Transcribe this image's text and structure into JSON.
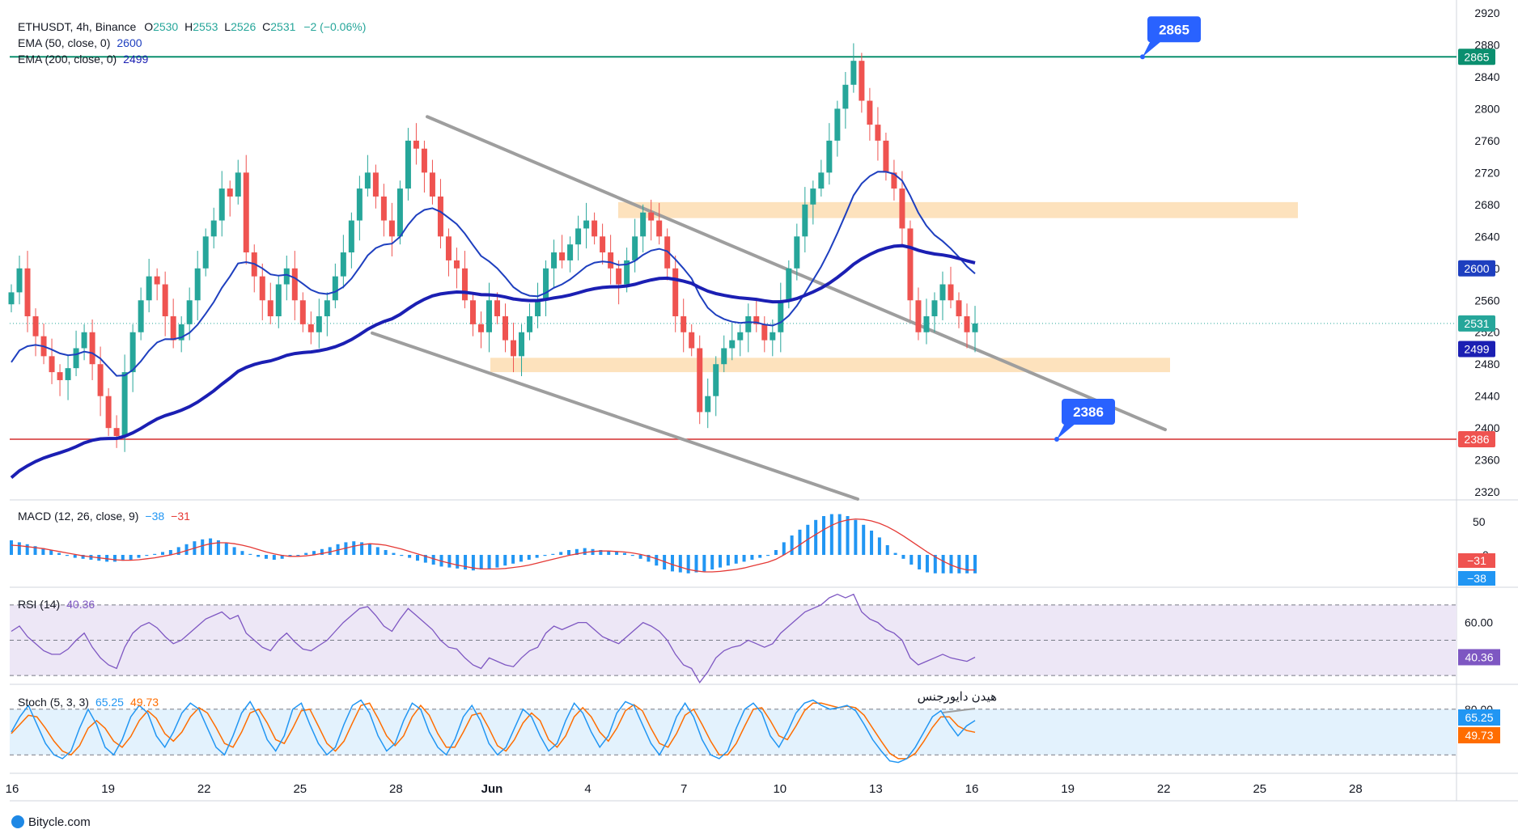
{
  "header": {
    "symbol_line": "ETHUSDT, 4h, Binance",
    "ohlc": {
      "o_label": "O",
      "o": "2530",
      "h_label": "H",
      "h": "2553",
      "l_label": "L",
      "l": "2526",
      "c_label": "C",
      "c": "2531",
      "change": "−2 (−0.06%)"
    },
    "ema50_label": "EMA (50, close, 0)",
    "ema50_value": "2600",
    "ema200_label": "EMA (200, close, 0)",
    "ema200_value": "2499"
  },
  "footer": {
    "watermark": "Bitycle.com"
  },
  "colors": {
    "up": "#26a69a",
    "down": "#ef5350",
    "ema50": "#1e3fbf",
    "ema200": "#1b1fb3",
    "trendline": "#9e9e9e",
    "zone": "#fde2bd",
    "resistance_line": "#0b8f6f",
    "support_line": "#d32f2f",
    "callout": "#2962ff",
    "rsi": "#7e57c2",
    "stoch_k": "#2196f3",
    "stoch_d": "#ff6d00",
    "macd_hist": "#2196f3",
    "macd_signal": "#e53935"
  },
  "chart_data": [
    {
      "type": "candlestick",
      "title": "ETHUSDT, 4h, Binance",
      "x_ticks": [
        "16",
        "19",
        "22",
        "25",
        "28",
        "Jun",
        "4",
        "7",
        "10",
        "13",
        "16",
        "19",
        "22",
        "25",
        "28"
      ],
      "y_ticks": [
        2320,
        2360,
        2400,
        2440,
        2480,
        2520,
        2560,
        2600,
        2640,
        2680,
        2720,
        2760,
        2800,
        2840,
        2880,
        2920
      ],
      "ylim": [
        2310,
        2922
      ],
      "price_labels": {
        "resistance": "2865",
        "ema50": "2600",
        "last": "2531",
        "ema200": "2499",
        "support": "2386"
      },
      "horizontal_levels": [
        {
          "value": 2865,
          "callout": "2865"
        },
        {
          "value": 2386,
          "callout": "2386"
        }
      ],
      "zones": [
        {
          "from": 2663,
          "to": 2683
        },
        {
          "from": 2470,
          "to": 2488
        }
      ],
      "trend_lines": [
        {
          "from": [
            "28",
            2790
          ],
          "to": [
            "22",
            2398
          ]
        },
        {
          "from": [
            "27",
            2519
          ],
          "to": [
            "10",
            2311
          ]
        }
      ],
      "closes": [
        2570,
        2600,
        2540,
        2515,
        2490,
        2470,
        2460,
        2475,
        2500,
        2520,
        2480,
        2440,
        2400,
        2390,
        2470,
        2520,
        2560,
        2590,
        2580,
        2540,
        2510,
        2530,
        2560,
        2600,
        2640,
        2660,
        2700,
        2690,
        2720,
        2620,
        2590,
        2560,
        2540,
        2580,
        2600,
        2560,
        2530,
        2520,
        2540,
        2560,
        2590,
        2620,
        2660,
        2700,
        2720,
        2690,
        2660,
        2640,
        2700,
        2760,
        2750,
        2720,
        2690,
        2640,
        2610,
        2600,
        2560,
        2530,
        2520,
        2560,
        2540,
        2510,
        2490,
        2520,
        2540,
        2560,
        2600,
        2620,
        2610,
        2630,
        2650,
        2660,
        2640,
        2620,
        2600,
        2580,
        2610,
        2640,
        2670,
        2660,
        2640,
        2600,
        2540,
        2520,
        2500,
        2420,
        2440,
        2480,
        2500,
        2510,
        2520,
        2540,
        2530,
        2510,
        2520,
        2560,
        2600,
        2640,
        2680,
        2700,
        2720,
        2760,
        2800,
        2830,
        2860,
        2810,
        2780,
        2760,
        2720,
        2700,
        2650,
        2560,
        2520,
        2540,
        2560,
        2580,
        2560,
        2540,
        2520,
        2531
      ]
    },
    {
      "type": "line",
      "name": "MACD (12, 26, close, 9)",
      "indicator_label": "MACD (12, 26, close, 9)",
      "values_label": {
        "macd": "−38",
        "signal": "−31"
      },
      "y_ticks": [
        "50",
        "0"
      ],
      "histogram": [
        30,
        26,
        22,
        18,
        14,
        10,
        4,
        -2,
        -6,
        -8,
        -10,
        -12,
        -14,
        -14,
        -12,
        -10,
        -6,
        -2,
        2,
        6,
        10,
        16,
        22,
        28,
        32,
        34,
        30,
        24,
        16,
        8,
        2,
        -4,
        -8,
        -10,
        -8,
        -4,
        0,
        4,
        8,
        12,
        16,
        22,
        26,
        28,
        26,
        22,
        16,
        10,
        4,
        -2,
        -6,
        -12,
        -16,
        -20,
        -24,
        -26,
        -28,
        -30,
        -32,
        -30,
        -28,
        -26,
        -22,
        -18,
        -14,
        -10,
        -6,
        -2,
        2,
        6,
        10,
        12,
        14,
        12,
        10,
        8,
        6,
        4,
        -2,
        -8,
        -14,
        -22,
        -30,
        -34,
        -36,
        -38,
        -36,
        -34,
        -30,
        -26,
        -22,
        -18,
        -14,
        -10,
        -6,
        -2,
        10,
        26,
        40,
        52,
        62,
        72,
        80,
        84,
        84,
        80,
        72,
        62,
        50,
        36,
        20,
        4,
        -8,
        -20,
        -30,
        -36,
        -38,
        -38,
        -38,
        -38,
        -38,
        -38
      ],
      "signal": [
        20,
        19,
        17,
        15,
        13,
        10,
        7,
        4,
        1,
        -2,
        -4,
        -6,
        -8,
        -10,
        -11,
        -11,
        -10,
        -8,
        -6,
        -3,
        0,
        4,
        9,
        14,
        19,
        23,
        25,
        25,
        23,
        20,
        16,
        11,
        6,
        2,
        -1,
        -3,
        -3,
        -2,
        0,
        3,
        6,
        10,
        14,
        18,
        21,
        23,
        22,
        20,
        16,
        12,
        7,
        2,
        -3,
        -8,
        -13,
        -17,
        -21,
        -24,
        -27,
        -29,
        -29,
        -29,
        -28,
        -26,
        -24,
        -21,
        -17,
        -13,
        -9,
        -5,
        -1,
        2,
        5,
        7,
        8,
        8,
        7,
        6,
        4,
        1,
        -3,
        -8,
        -14,
        -20,
        -25,
        -30,
        -33,
        -35,
        -35,
        -34,
        -32,
        -30,
        -27,
        -23,
        -19,
        -15,
        -9,
        0,
        10,
        21,
        32,
        42,
        52,
        61,
        68,
        72,
        74,
        73,
        70,
        65,
        58,
        49,
        39,
        28,
        17,
        6,
        -4,
        -13,
        -21,
        -27,
        -31,
        -31
      ]
    },
    {
      "type": "line",
      "name": "RSI (14)",
      "indicator_label": "RSI (14)",
      "value_label": "40.36",
      "y_ticks": [
        "60.00",
        "40.36"
      ],
      "bands": [
        70,
        50,
        30
      ],
      "ylim": [
        25,
        80
      ],
      "values": [
        55,
        58,
        52,
        48,
        44,
        42,
        42,
        45,
        50,
        54,
        46,
        40,
        36,
        34,
        46,
        54,
        58,
        60,
        57,
        52,
        48,
        50,
        54,
        58,
        62,
        64,
        66,
        62,
        64,
        54,
        50,
        46,
        44,
        50,
        54,
        49,
        45,
        44,
        47,
        50,
        55,
        60,
        64,
        68,
        69,
        64,
        58,
        55,
        62,
        68,
        64,
        60,
        56,
        50,
        46,
        45,
        40,
        36,
        34,
        40,
        38,
        36,
        35,
        40,
        44,
        46,
        54,
        58,
        56,
        58,
        60,
        60,
        56,
        52,
        50,
        48,
        52,
        56,
        60,
        58,
        55,
        50,
        42,
        36,
        34,
        26,
        32,
        40,
        44,
        46,
        47,
        50,
        48,
        46,
        48,
        54,
        58,
        62,
        66,
        68,
        70,
        74,
        76,
        74,
        76,
        66,
        62,
        60,
        56,
        54,
        50,
        40,
        36,
        38,
        40,
        42,
        40,
        39,
        38,
        40.36
      ]
    },
    {
      "type": "line",
      "name": "Stoch (5, 3, 3)",
      "indicator_label": "Stoch (5, 3, 3)",
      "values_label": {
        "k": "65.25",
        "d": "49.73"
      },
      "y_ticks": [
        "80.00",
        "65.25",
        "49.73"
      ],
      "bands": [
        80,
        20
      ],
      "ylim": [
        0,
        100
      ],
      "annotation": "هیدن دایورجنس",
      "k": [
        50,
        70,
        85,
        60,
        35,
        20,
        15,
        25,
        55,
        80,
        60,
        30,
        20,
        40,
        70,
        85,
        75,
        45,
        30,
        50,
        75,
        88,
        80,
        55,
        30,
        20,
        45,
        75,
        90,
        70,
        40,
        25,
        45,
        80,
        88,
        60,
        35,
        20,
        30,
        60,
        85,
        92,
        75,
        45,
        25,
        35,
        65,
        88,
        80,
        50,
        30,
        20,
        40,
        70,
        85,
        65,
        35,
        20,
        30,
        55,
        80,
        70,
        45,
        25,
        35,
        65,
        88,
        75,
        50,
        30,
        45,
        75,
        90,
        85,
        60,
        35,
        20,
        40,
        70,
        88,
        70,
        40,
        20,
        15,
        25,
        55,
        80,
        88,
        75,
        45,
        30,
        50,
        75,
        88,
        92,
        85,
        80,
        82,
        85,
        78,
        60,
        40,
        25,
        12,
        10,
        15,
        30,
        50,
        70,
        78,
        60,
        45,
        58,
        65.25
      ],
      "d": [
        48,
        60,
        72,
        70,
        55,
        38,
        25,
        20,
        32,
        55,
        65,
        55,
        38,
        30,
        44,
        65,
        78,
        68,
        48,
        38,
        50,
        70,
        82,
        75,
        56,
        35,
        30,
        50,
        75,
        80,
        62,
        40,
        35,
        55,
        78,
        80,
        58,
        35,
        25,
        38,
        62,
        85,
        88,
        68,
        45,
        32,
        45,
        70,
        85,
        72,
        48,
        30,
        30,
        50,
        72,
        75,
        55,
        32,
        25,
        40,
        62,
        75,
        65,
        40,
        30,
        45,
        70,
        82,
        70,
        50,
        38,
        55,
        78,
        86,
        78,
        55,
        35,
        30,
        48,
        72,
        80,
        60,
        38,
        20,
        20,
        35,
        58,
        80,
        82,
        65,
        45,
        40,
        58,
        78,
        88,
        88,
        85,
        82,
        84,
        82,
        72,
        55,
        38,
        22,
        15,
        15,
        22,
        38,
        56,
        70,
        70,
        58,
        52,
        49.73
      ]
    }
  ]
}
